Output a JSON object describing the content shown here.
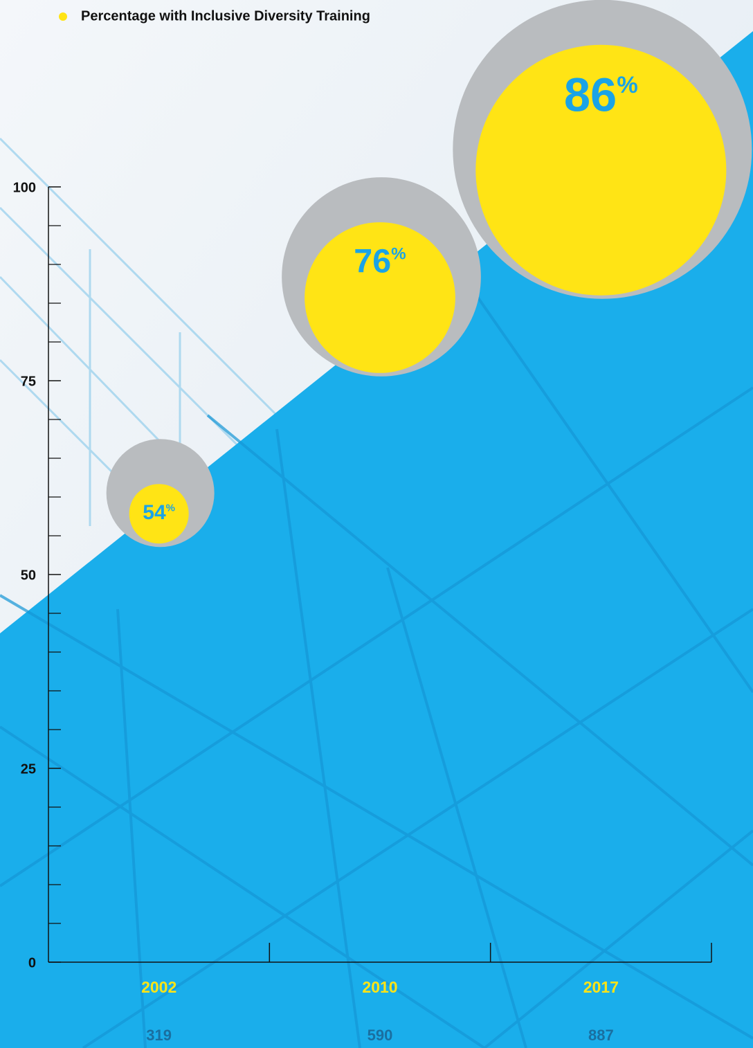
{
  "chart_data": {
    "type": "bubble",
    "categories": [
      "2002",
      "2010",
      "2017"
    ],
    "series": [
      {
        "name": "Percentage with Inclusive Diversity Training",
        "color": "#FFE415",
        "values": [
          54,
          76,
          86
        ],
        "value_labels": [
          "54%",
          "76%",
          "86%"
        ],
        "sizes": [
          319,
          590,
          887
        ]
      }
    ],
    "ylim": [
      0,
      100
    ],
    "yticks": [
      0,
      25,
      50,
      75,
      100
    ],
    "yminor_ticks": [
      5,
      10,
      15,
      20,
      30,
      35,
      40,
      45,
      55,
      60,
      65,
      70,
      80,
      85,
      90,
      95
    ]
  }
}
